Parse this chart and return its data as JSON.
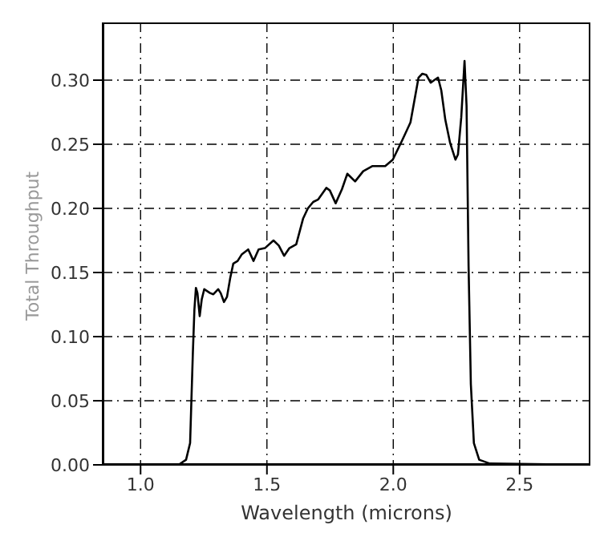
{
  "chart_data": {
    "type": "line",
    "xlabel": "Wavelength (microns)",
    "ylabel": "Total Throughput",
    "x": [
      0.854,
      1.15,
      1.18,
      1.196,
      1.207,
      1.213,
      1.219,
      1.225,
      1.234,
      1.242,
      1.252,
      1.275,
      1.288,
      1.307,
      1.317,
      1.33,
      1.342,
      1.355,
      1.367,
      1.384,
      1.4,
      1.426,
      1.447,
      1.467,
      1.492,
      1.526,
      1.547,
      1.568,
      1.589,
      1.616,
      1.643,
      1.662,
      1.683,
      1.703,
      1.735,
      1.749,
      1.772,
      1.797,
      1.818,
      1.849,
      1.881,
      1.918,
      1.943,
      1.968,
      1.998,
      2.035,
      2.068,
      2.1,
      2.115,
      2.131,
      2.148,
      2.162,
      2.177,
      2.19,
      2.206,
      2.225,
      2.246,
      2.256,
      2.269,
      2.282,
      2.29,
      2.298,
      2.307,
      2.319,
      2.34,
      2.382,
      2.78
    ],
    "series": [
      {
        "color": "#000000",
        "values": [
          0,
          0,
          0.004,
          0.017,
          0.088,
          0.121,
          0.138,
          0.134,
          0.116,
          0.129,
          0.137,
          0.134,
          0.133,
          0.137,
          0.134,
          0.127,
          0.131,
          0.146,
          0.157,
          0.159,
          0.164,
          0.168,
          0.159,
          0.168,
          0.169,
          0.175,
          0.171,
          0.163,
          0.169,
          0.172,
          0.192,
          0.2,
          0.205,
          0.207,
          0.216,
          0.214,
          0.204,
          0.215,
          0.227,
          0.221,
          0.229,
          0.233,
          0.233,
          0.233,
          0.238,
          0.253,
          0.267,
          0.302,
          0.305,
          0.304,
          0.298,
          0.3,
          0.302,
          0.292,
          0.269,
          0.251,
          0.238,
          0.242,
          0.271,
          0.315,
          0.28,
          0.155,
          0.063,
          0.017,
          0.004,
          0.001,
          0
        ]
      }
    ],
    "xlim": [
      0.85,
      2.78
    ],
    "xticks": [
      {
        "value": 1,
        "label": "1.0"
      },
      {
        "value": 1.5,
        "label": "1.5"
      },
      {
        "value": 2,
        "label": "2.0"
      },
      {
        "value": 2.5,
        "label": "2.5"
      }
    ],
    "ylim": [
      0,
      0.345
    ],
    "yticks": [
      {
        "value": 0,
        "label": "0.00"
      },
      {
        "value": 0.05,
        "label": "0.05"
      },
      {
        "value": 0.1,
        "label": "0.10"
      },
      {
        "value": 0.15,
        "label": "0.15"
      },
      {
        "value": 0.2,
        "label": "0.20"
      },
      {
        "value": 0.25,
        "label": "0.25"
      },
      {
        "value": 0.3,
        "label": "0.30"
      }
    ],
    "grid": true,
    "marker": "none",
    "line_style": "solid"
  }
}
